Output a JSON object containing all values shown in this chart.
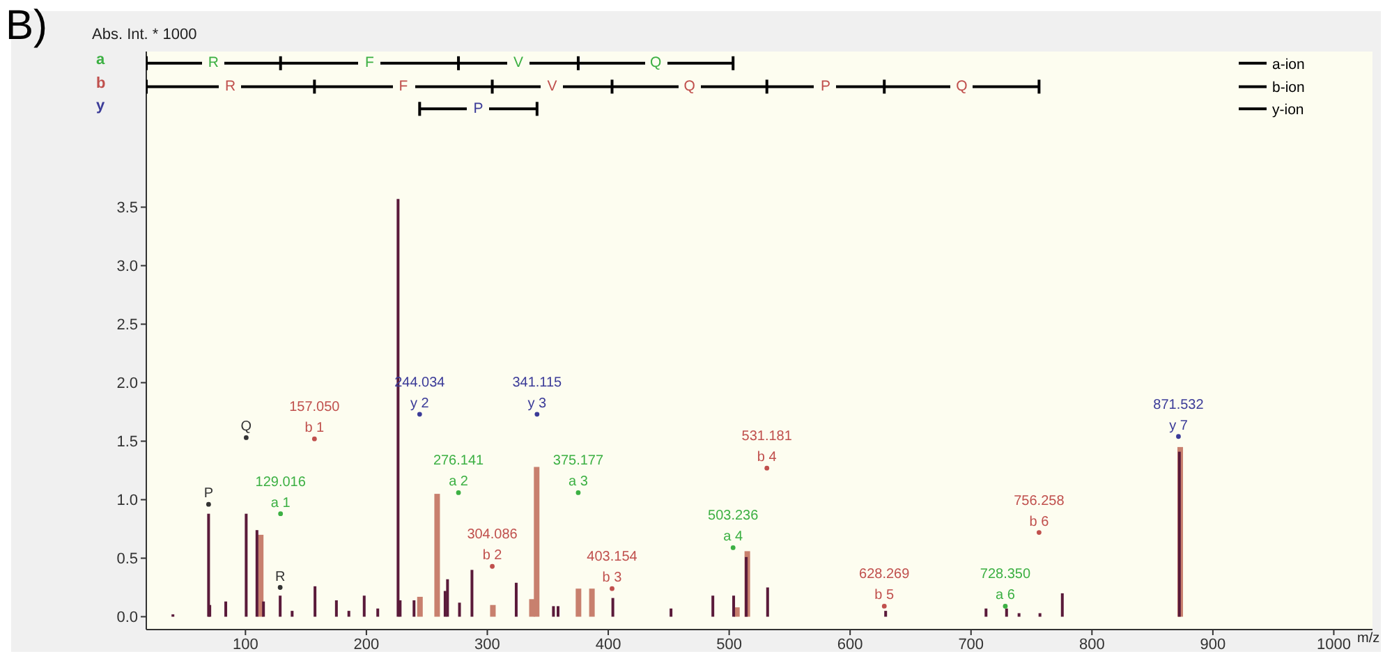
{
  "chart_data": {
    "type": "bar",
    "title": "B)",
    "ylabel": "Abs. Int. * 1000",
    "xlabel": "m/z",
    "xlim": [
      18,
      1032
    ],
    "ylim": [
      -0.11,
      4.83
    ],
    "xticks": [
      100,
      200,
      300,
      400,
      500,
      600,
      700,
      800,
      900,
      1000
    ],
    "yticks": [
      {
        "value": 0,
        "label": "0.0"
      },
      {
        "value": 0.5,
        "label": "0.5"
      },
      {
        "value": 1,
        "label": "1.0"
      },
      {
        "value": 1.5,
        "label": "1.5"
      },
      {
        "value": 2,
        "label": "2.0"
      },
      {
        "value": 2.5,
        "label": "2.5"
      },
      {
        "value": 3,
        "label": "3.0"
      },
      {
        "value": 3.5,
        "label": "3.5"
      }
    ],
    "marker": "circle",
    "legend": "top right",
    "annotations": [
      {
        "text": "R",
        "x": 73.5,
        "y": 4.73
      },
      {
        "text": "F",
        "x": 202.6,
        "y": 4.73
      },
      {
        "text": "V",
        "x": 325.7,
        "y": 4.73
      },
      {
        "text": "Q",
        "x": 439.2,
        "y": 4.73
      },
      {
        "text": "R",
        "x": 87.5,
        "y": 4.53
      },
      {
        "text": "F",
        "x": 230.6,
        "y": 4.53
      },
      {
        "text": "V",
        "x": 353.6,
        "y": 4.53
      },
      {
        "text": "Q",
        "x": 467.2,
        "y": 4.53
      },
      {
        "text": "P",
        "x": 579.7,
        "y": 4.53
      },
      {
        "text": "Q",
        "x": 692.3,
        "y": 4.53
      },
      {
        "text": "P",
        "x": 292.6,
        "y": 4.34
      }
    ],
    "series": [
      {
        "color": "#c8806e",
        "x": [
          112.6,
          244.3,
          258.5,
          304.6,
          336.9,
          340.8,
          375.4,
          386.5,
          506.4,
          515,
          873
        ],
        "values": [
          0.7,
          0.17,
          1.05,
          0.1,
          0.15,
          1.28,
          0.24,
          0.24,
          0.08,
          0.56,
          1.45
        ]
      },
      {
        "color": "#5a1a3a",
        "x": [
          40,
          69.5,
          70.5,
          83.7,
          100.6,
          109.5,
          114.9,
          128.7,
          138.6,
          157.5,
          175.2,
          185.5,
          198.2,
          209.4,
          226.2,
          227.9,
          239.4,
          265.1,
          267.1,
          277,
          287.3,
          323.9,
          354.7,
          358.5,
          403.8,
          451.9,
          486.5,
          503.7,
          514.1,
          531.8,
          629.4,
          712.4,
          729.4,
          739.7,
          757,
          775.5,
          872.3
        ],
        "values": [
          0.02,
          0.88,
          0.1,
          0.13,
          0.88,
          0.74,
          0.13,
          0.18,
          0.05,
          0.26,
          0.14,
          0.05,
          0.18,
          0.07,
          3.57,
          0.14,
          0.14,
          0.22,
          0.32,
          0.12,
          0.4,
          0.29,
          0.09,
          0.09,
          0.16,
          0.07,
          0.18,
          0.18,
          0.51,
          0.25,
          0.05,
          0.07,
          0.07,
          0.03,
          0.03,
          0.2,
          1.41
        ]
      },
      {
        "type": "scatter",
        "name": "a",
        "color": "#3cb043",
        "x": [
          129.016,
          276.141,
          375.177,
          503.236,
          728.35
        ],
        "values": [
          0.88,
          1.06,
          1.06,
          0.59,
          0.09
        ],
        "value_labels": [
          "129.016\na 1",
          "276.141\na 2",
          "375.177\na 3",
          "503.236\na 4",
          "728.350\na 6"
        ]
      },
      {
        "type": "scatter",
        "name": "b",
        "color": "#c0504d",
        "x": [
          157.05,
          304.086,
          403.154,
          531.181,
          628.269,
          756.258
        ],
        "values": [
          1.52,
          0.43,
          0.24,
          1.27,
          0.09,
          0.72
        ],
        "value_labels": [
          "157.050\nb 1",
          "304.086\nb 2",
          "403.154\nb 3",
          "531.181\nb 4",
          "628.269\nb 5",
          "756.258\nb 6"
        ]
      },
      {
        "type": "scatter",
        "name": "y",
        "color": "#3b3b98",
        "x": [
          244.034,
          341.115,
          871.532
        ],
        "values": [
          1.73,
          1.73,
          1.54
        ],
        "value_labels": [
          "244.034\ny 2",
          "341.115\ny 3",
          "871.532\ny 7"
        ]
      },
      {
        "type": "scatter",
        "color": "#333333",
        "x": [
          69.5,
          100.6,
          128.7
        ],
        "values": [
          0.96,
          1.53,
          0.25
        ],
        "value_labels": [
          "P",
          "Q",
          "R"
        ]
      },
      {
        "type": "line",
        "name": "a-ion",
        "color": "#000000",
        "marker": "none",
        "x": [
          18,
          129.016,
          276.141,
          375.177,
          503.236
        ],
        "values": [
          4.73,
          4.73,
          4.73,
          4.73,
          4.73
        ]
      },
      {
        "type": "line",
        "name": "b-ion",
        "color": "#000000",
        "marker": "none",
        "x": [
          18,
          157.05,
          304.086,
          403.154,
          531.181,
          628.269,
          756.258
        ],
        "values": [
          4.53,
          4.53,
          4.53,
          4.53,
          4.53,
          4.53,
          4.53
        ]
      },
      {
        "type": "line",
        "name": "y-ion",
        "color": "#000000",
        "marker": "none",
        "x": [
          244.034,
          341.115
        ],
        "values": [
          4.34,
          4.34
        ]
      }
    ]
  }
}
